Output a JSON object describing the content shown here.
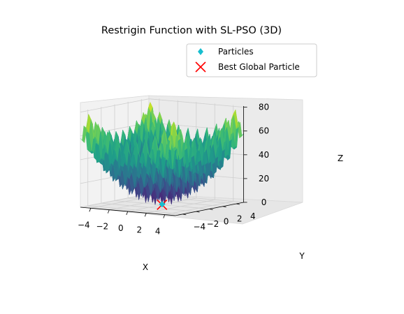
{
  "chart_data": {
    "type": "surface3d",
    "title": "Restrigin Function with SL-PSO (3D)",
    "xlabel": "X",
    "ylabel": "Y",
    "zlabel": "Z",
    "x_ticks": [
      "−4",
      "−2",
      "0",
      "2",
      "4"
    ],
    "y_ticks": [
      "−4",
      "−2",
      "0",
      "2",
      "4"
    ],
    "z_ticks": [
      "0",
      "20",
      "40",
      "60",
      "80"
    ],
    "xlim": [
      -5.12,
      5.12
    ],
    "ylim": [
      -5.12,
      5.12
    ],
    "zlim": [
      0,
      81
    ],
    "colormap": "viridis",
    "grid": true,
    "legend_position": "top-right",
    "legend": [
      {
        "name": "Particles",
        "marker": "diamond",
        "color": "#17becf"
      },
      {
        "name": "Best Global Particle",
        "marker": "x",
        "color": "#ff0000"
      }
    ],
    "best_global": {
      "x": 0,
      "y": 0,
      "z": 0
    },
    "particles": [
      {
        "x": 0.02,
        "y": -0.03,
        "z": 0.2
      },
      {
        "x": -0.05,
        "y": 0.04,
        "z": 0.5
      },
      {
        "x": 0.04,
        "y": 0.02,
        "z": 0.4
      }
    ]
  }
}
